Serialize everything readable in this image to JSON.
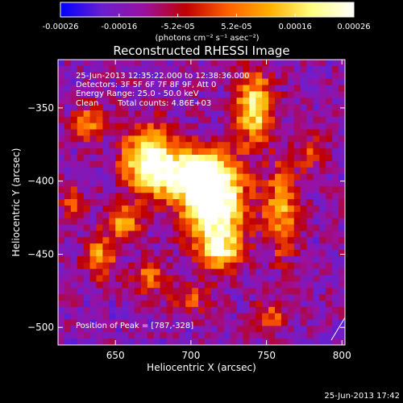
{
  "chart_data": {
    "type": "heatmap",
    "title": "Reconstructed RHESSI Image",
    "xlabel": "Heliocentric X (arcsec)",
    "ylabel": "Heliocentric Y (arcsec)",
    "xlim": [
      612,
      802
    ],
    "ylim": [
      -512,
      -317
    ],
    "x_ticks": [
      650,
      700,
      750,
      800
    ],
    "y_ticks": [
      -350,
      -400,
      -450,
      -500
    ],
    "colorbar": {
      "range": [
        -0.00026,
        0.00026
      ],
      "ticks": [
        "-0.00026",
        "-0.00016",
        "-5.2e-05",
        "5.2e-05",
        "0.00016",
        "0.00026"
      ],
      "unit_label": "(photons cm⁻² s⁻¹ asec⁻²)",
      "colormap": [
        "#0000ff",
        "#6a1fd0",
        "#9a10a0",
        "#c00000",
        "#ff6000",
        "#ffb000",
        "#ffff80",
        "#ffffff"
      ]
    },
    "annotations": {
      "time": "25-Jun-2013 12:35:22.000 to 12:38:36.000",
      "detectors": "Detectors: 3F 5F 6F 7F 8F 9F, Att 0",
      "energy": "Energy Range: 25.0 - 50.0 keV",
      "method": "Clean",
      "counts": "Total counts: 4.86E+03",
      "peak": "Position of Peak = [787,-328]"
    },
    "sources": [
      {
        "x": 715,
        "y": -415,
        "sx": 14,
        "sy": 18,
        "amp": 1.0
      },
      {
        "x": 700,
        "y": -395,
        "sx": 18,
        "sy": 12,
        "amp": 0.7
      },
      {
        "x": 672,
        "y": -385,
        "sx": 12,
        "sy": 16,
        "amp": 0.75
      },
      {
        "x": 742,
        "y": -350,
        "sx": 9,
        "sy": 16,
        "amp": 0.7
      },
      {
        "x": 720,
        "y": -448,
        "sx": 10,
        "sy": 10,
        "amp": 0.6
      },
      {
        "x": 760,
        "y": -420,
        "sx": 8,
        "sy": 22,
        "amp": 0.5
      },
      {
        "x": 640,
        "y": -452,
        "sx": 7,
        "sy": 10,
        "amp": 0.45
      },
      {
        "x": 655,
        "y": -428,
        "sx": 8,
        "sy": 8,
        "amp": 0.5
      },
      {
        "x": 632,
        "y": -360,
        "sx": 7,
        "sy": 8,
        "amp": 0.45
      },
      {
        "x": 672,
        "y": -465,
        "sx": 8,
        "sy": 8,
        "amp": 0.35
      },
      {
        "x": 752,
        "y": -492,
        "sx": 8,
        "sy": 7,
        "amp": 0.35
      },
      {
        "x": 700,
        "y": -480,
        "sx": 10,
        "sy": 7,
        "amp": 0.3
      },
      {
        "x": 780,
        "y": -380,
        "sx": 8,
        "sy": 10,
        "amp": 0.25
      },
      {
        "x": 622,
        "y": -415,
        "sx": 6,
        "sy": 10,
        "amp": 0.3
      }
    ]
  },
  "footer": {
    "timestamp": "25-Jun-2013 17:42"
  }
}
